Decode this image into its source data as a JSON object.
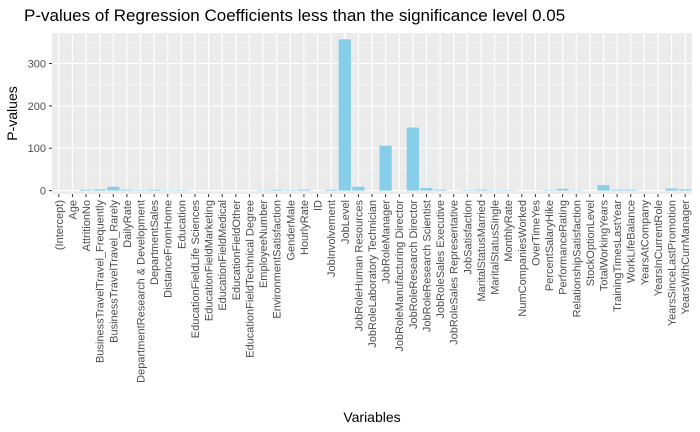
{
  "chart_data": {
    "type": "bar",
    "title": "P-values of Regression Coefficients less than the significance level 0.05",
    "xlabel": "Variables",
    "ylabel": "P-values",
    "ylim": [
      -8,
      372
    ],
    "yticks": [
      0,
      100,
      200,
      300
    ],
    "grid": true,
    "legend": "none",
    "colors": {
      "bar": "#87CEEB",
      "panel": "#EBEBEB",
      "grid_major": "#FFFFFF",
      "grid_minor": "#F4F4F4",
      "tick_label": "#4D4D4D"
    },
    "categories": [
      "(Intercept)",
      "Age",
      "AttritionNo",
      "BusinessTravelTravel_Frequently",
      "BusinessTravelTravel_Rarely",
      "DailyRate",
      "DepartmentResearch & Development",
      "DepartmentSales",
      "DistanceFromHome",
      "Education",
      "EducationFieldLife Sciences",
      "EducationFieldMarketing",
      "EducationFieldMedical",
      "EducationFieldOther",
      "EducationFieldTechnical Degree",
      "EmployeeNumber",
      "EnvironmentSatisfaction",
      "GenderMale",
      "HourlyRate",
      "ID",
      "JobInvolvement",
      "JobLevel",
      "JobRoleHuman Resources",
      "JobRoleLaboratory Technician",
      "JobRoleManager",
      "JobRoleManufacturing Director",
      "JobRoleResearch Director",
      "JobRoleResearch Scientist",
      "JobRoleSales Executive",
      "JobRoleSales Representative",
      "JobSatisfaction",
      "MaritalStatusMarried",
      "MaritalStatusSingle",
      "MonthlyRate",
      "NumCompaniesWorked",
      "OverTimeYes",
      "PercentSalaryHike",
      "PerformanceRating",
      "RelationshipSatisfaction",
      "StockOptionLevel",
      "TotalWorkingYears",
      "TrainingTimesLastYear",
      "WorkLifeBalance",
      "YearsAtCompany",
      "YearsInCurrentRole",
      "YearsSinceLastPromotion",
      "YearsWithCurrManager"
    ],
    "values": [
      0,
      0,
      2,
      3,
      9,
      2,
      1,
      2,
      1,
      1,
      0,
      0,
      0,
      0,
      0,
      1,
      2,
      1,
      2,
      0,
      2,
      357,
      9,
      0,
      106,
      0,
      149,
      6,
      2,
      0,
      1,
      2,
      1,
      1,
      0,
      0,
      1,
      4,
      1,
      0,
      13,
      2,
      2,
      0,
      0,
      5,
      3
    ]
  }
}
